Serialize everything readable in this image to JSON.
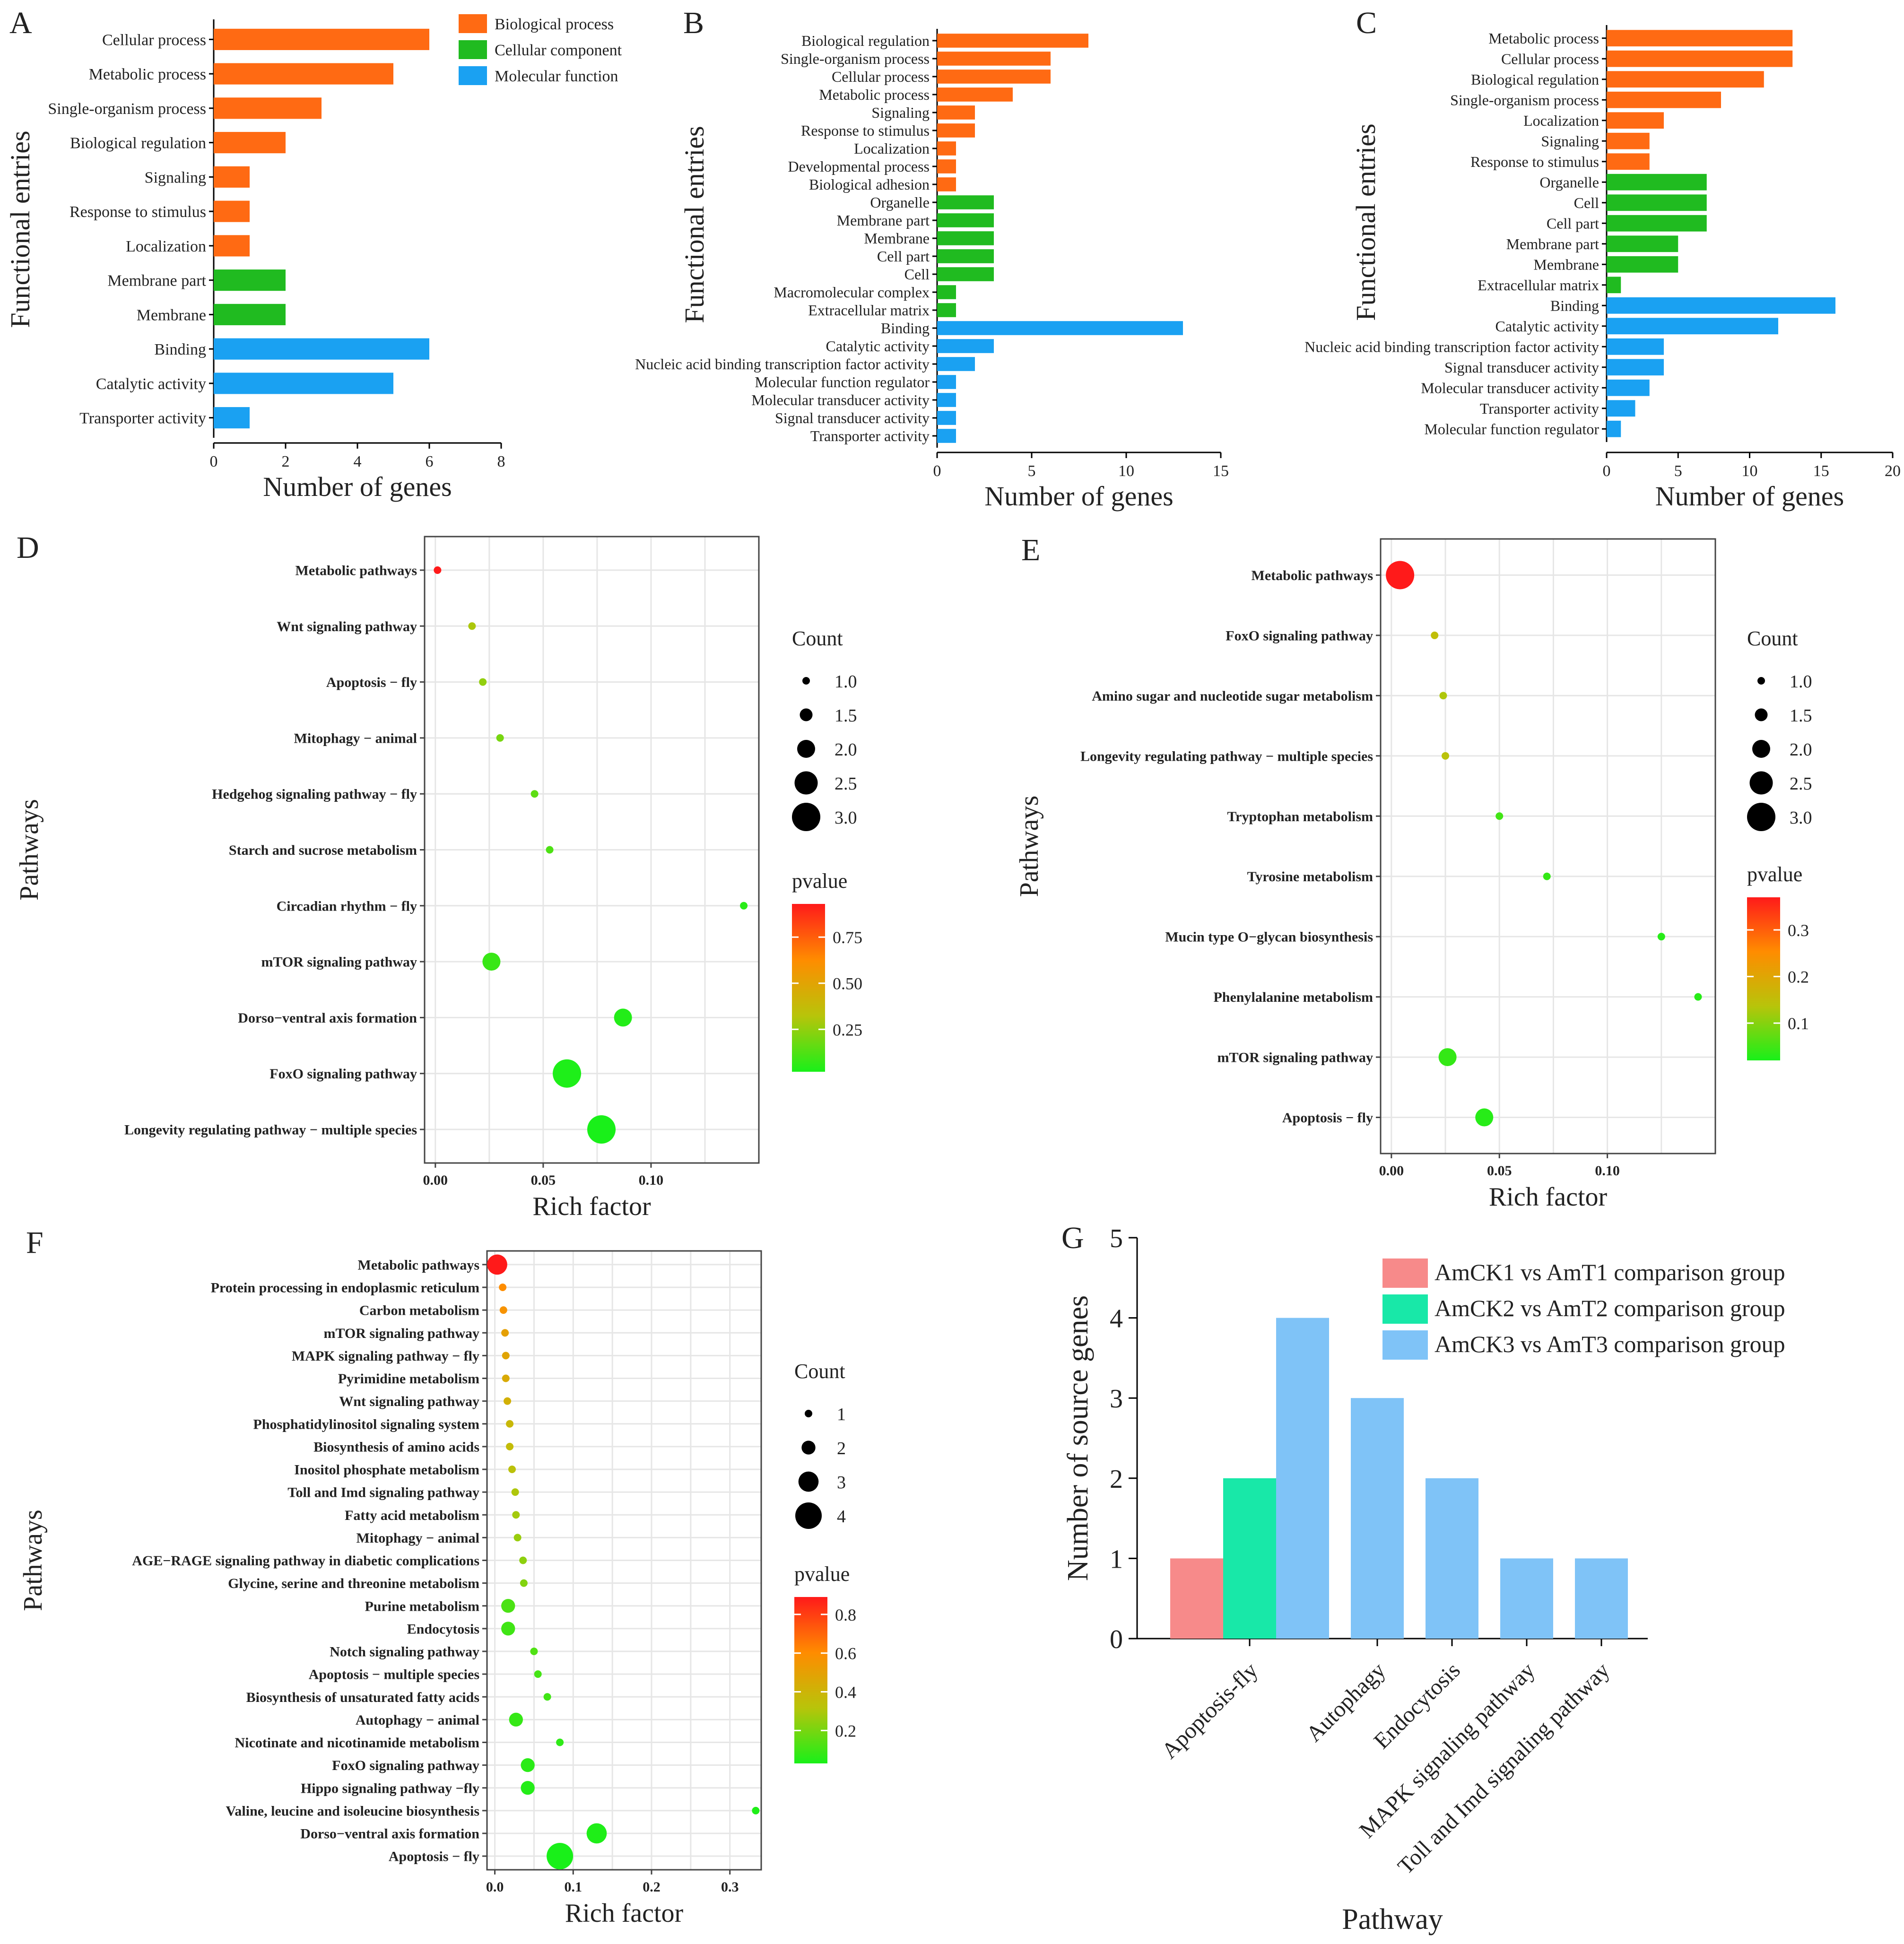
{
  "colors": {
    "biological_process": "#ff6a13",
    "cellular_component": "#20bb20",
    "molecular_function": "#1aa1f2",
    "grid": "#e6e6e6",
    "g_series": [
      "#f78a8a",
      "#18e8a8",
      "#7fc3f7"
    ],
    "pvalue_gradient": [
      "#ff1a1a",
      "#ff8c00",
      "#b8c40a",
      "#19f019"
    ]
  },
  "chart_data": [
    {
      "panel": "A",
      "type": "bar",
      "orientation": "horizontal",
      "xlabel": "Number of genes",
      "ylabel": "Functional entries",
      "xlim": [
        0,
        8
      ],
      "xticks": [
        "0",
        "2",
        "4",
        "6",
        "8"
      ],
      "legend": [
        "Biological process",
        "Cellular component",
        "Molecular function"
      ],
      "categories": [
        "Cellular process",
        "Metabolic process",
        "Single-organism process",
        "Biological regulation",
        "Signaling",
        "Response to stimulus",
        "Localization",
        "Membrane part",
        "Membrane",
        "Binding",
        "Catalytic activity",
        "Transporter activity"
      ],
      "groups": [
        "bp",
        "bp",
        "bp",
        "bp",
        "bp",
        "bp",
        "bp",
        "cc",
        "cc",
        "mf",
        "mf",
        "mf"
      ],
      "values": [
        6,
        5,
        3,
        2,
        1,
        1,
        1,
        2,
        2,
        6,
        5,
        1
      ]
    },
    {
      "panel": "B",
      "type": "bar",
      "orientation": "horizontal",
      "xlabel": "Number of genes",
      "ylabel": "Functional entries",
      "xlim": [
        0,
        15
      ],
      "xticks": [
        "0",
        "5",
        "10",
        "15"
      ],
      "categories": [
        "Biological regulation",
        "Single-organism process",
        "Cellular process",
        "Metabolic process",
        "Signaling",
        "Response to stimulus",
        "Localization",
        "Developmental process",
        "Biological adhesion",
        "Organelle",
        "Membrane part",
        "Membrane",
        "Cell part",
        "Cell",
        "Macromolecular complex",
        "Extracellular matrix",
        "Binding",
        "Catalytic activity",
        "Nucleic acid binding transcription factor activity",
        "Molecular function regulator",
        "Molecular transducer activity",
        "Signal transducer activity",
        "Transporter activity"
      ],
      "groups": [
        "bp",
        "bp",
        "bp",
        "bp",
        "bp",
        "bp",
        "bp",
        "bp",
        "bp",
        "cc",
        "cc",
        "cc",
        "cc",
        "cc",
        "cc",
        "cc",
        "mf",
        "mf",
        "mf",
        "mf",
        "mf",
        "mf",
        "mf"
      ],
      "values": [
        8,
        6,
        6,
        4,
        2,
        2,
        1,
        1,
        1,
        3,
        3,
        3,
        3,
        3,
        1,
        1,
        13,
        3,
        2,
        1,
        1,
        1,
        1
      ]
    },
    {
      "panel": "C",
      "type": "bar",
      "orientation": "horizontal",
      "xlabel": "Number of genes",
      "ylabel": "Functional entries",
      "xlim": [
        0,
        20
      ],
      "xticks": [
        "0",
        "5",
        "10",
        "15",
        "20"
      ],
      "categories": [
        "Metabolic process",
        "Cellular process",
        "Biological regulation",
        "Single-organism process",
        "Localization",
        "Signaling",
        "Response to stimulus",
        "Organelle",
        "Cell",
        "Cell part",
        "Membrane part",
        "Membrane",
        "Extracellular matrix",
        "Binding",
        "Catalytic activity",
        "Nucleic acid binding transcription factor activity",
        "Signal transducer activity",
        "Molecular transducer activity",
        "Transporter activity",
        "Molecular function regulator"
      ],
      "groups": [
        "bp",
        "bp",
        "bp",
        "bp",
        "bp",
        "bp",
        "bp",
        "cc",
        "cc",
        "cc",
        "cc",
        "cc",
        "cc",
        "mf",
        "mf",
        "mf",
        "mf",
        "mf",
        "mf",
        "mf"
      ],
      "values": [
        13,
        13,
        11,
        8,
        4,
        3,
        3,
        7,
        7,
        7,
        5,
        5,
        1,
        16,
        12,
        4,
        4,
        3,
        2,
        1
      ]
    },
    {
      "panel": "D",
      "type": "scatter",
      "xlabel": "Rich factor",
      "ylabel": "Pathways",
      "xlim": [
        -0.005,
        0.15
      ],
      "xticks": [
        0,
        0.05,
        0.1
      ],
      "xtick_labels": [
        "0.00",
        "0.05",
        "0.10"
      ],
      "count_legend_title": "Count",
      "count_legend": [
        "1.0",
        "1.5",
        "2.0",
        "2.5",
        "3.0"
      ],
      "count_levels": [
        1,
        1.5,
        2,
        2.5,
        3
      ],
      "pvalue_title": "pvalue",
      "pvalue_range": [
        0.02,
        0.93
      ],
      "pvalue_ticks": [
        "0.75",
        "0.50",
        "0.25"
      ],
      "pvalue_tick_values": [
        0.75,
        0.5,
        0.25
      ],
      "pathways": [
        "Metabolic pathways",
        "Wnt signaling pathway",
        "Apoptosis − fly",
        "Mitophagy − animal",
        "Hedgehog signaling pathway − fly",
        "Starch and sucrose metabolism",
        "Circadian rhythm − fly",
        "mTOR signaling pathway",
        "Dorso−ventral axis formation",
        "FoxO signaling pathway",
        "Longevity regulating pathway − multiple species"
      ],
      "rich_factor": [
        0.001,
        0.017,
        0.022,
        0.03,
        0.046,
        0.053,
        0.143,
        0.026,
        0.087,
        0.061,
        0.077
      ],
      "count": [
        1,
        1,
        1,
        1,
        1,
        1,
        1,
        2,
        2,
        3,
        3
      ],
      "pvalue": [
        0.93,
        0.3,
        0.25,
        0.2,
        0.15,
        0.12,
        0.05,
        0.08,
        0.04,
        0.03,
        0.02
      ]
    },
    {
      "panel": "E",
      "type": "scatter",
      "xlabel": "Rich factor",
      "ylabel": "Pathways",
      "xlim": [
        -0.005,
        0.15
      ],
      "xticks": [
        0,
        0.05,
        0.1
      ],
      "xtick_labels": [
        "0.00",
        "0.05",
        "0.10"
      ],
      "count_legend_title": "Count",
      "count_legend": [
        "1.0",
        "1.5",
        "2.0",
        "2.5",
        "3.0"
      ],
      "count_levels": [
        1,
        1.5,
        2,
        2.5,
        3
      ],
      "pvalue_title": "pvalue",
      "pvalue_range": [
        0.02,
        0.37
      ],
      "pvalue_ticks": [
        "0.3",
        "0.2",
        "0.1"
      ],
      "pvalue_tick_values": [
        0.3,
        0.2,
        0.1
      ],
      "pathways": [
        "Metabolic pathways",
        "FoxO signaling pathway",
        "Amino sugar and nucleotide sugar metabolism",
        "Longevity regulating pathway − multiple species",
        "Tryptophan metabolism",
        "Tyrosine metabolism",
        "Mucin type O−glycan biosynthesis",
        "Phenylalanine metabolism",
        "mTOR signaling pathway",
        "Apoptosis − fly"
      ],
      "rich_factor": [
        0.004,
        0.02,
        0.024,
        0.025,
        0.05,
        0.072,
        0.125,
        0.142,
        0.026,
        0.043
      ],
      "count": [
        3,
        1,
        1,
        1,
        1,
        1,
        1,
        1,
        2,
        2
      ],
      "pvalue": [
        0.37,
        0.15,
        0.13,
        0.14,
        0.05,
        0.04,
        0.03,
        0.03,
        0.04,
        0.03
      ]
    },
    {
      "panel": "F",
      "type": "scatter",
      "xlabel": "Rich factor",
      "ylabel": "Pathways",
      "xlim": [
        -0.01,
        0.34
      ],
      "xticks": [
        0,
        0.1,
        0.2,
        0.3
      ],
      "xtick_labels": [
        "0.0",
        "0.1",
        "0.2",
        "0.3"
      ],
      "count_legend_title": "Count",
      "count_legend": [
        "1",
        "2",
        "3",
        "4"
      ],
      "count_levels": [
        1,
        2,
        3,
        4
      ],
      "pvalue_title": "pvalue",
      "pvalue_range": [
        0.03,
        0.89
      ],
      "pvalue_ticks": [
        "0.8",
        "0.6",
        "0.4",
        "0.2"
      ],
      "pvalue_tick_values": [
        0.8,
        0.6,
        0.4,
        0.2
      ],
      "pathways": [
        "Metabolic pathways",
        "Protein processing in endoplasmic reticulum",
        "Carbon metabolism",
        "mTOR signaling pathway",
        "MAPK signaling pathway − fly",
        "Pyrimidine metabolism",
        "Wnt signaling pathway",
        "Phosphatidylinositol signaling system",
        "Biosynthesis of amino acids",
        "Inositol phosphate metabolism",
        "Toll and Imd signaling pathway",
        "Fatty acid metabolism",
        "Mitophagy − animal",
        "AGE−RAGE signaling pathway in diabetic complications",
        "Glycine, serine and threonine metabolism",
        "Purine metabolism",
        "Endocytosis",
        "Notch signaling pathway",
        "Apoptosis − multiple species",
        "Biosynthesis of unsaturated fatty acids",
        "Autophagy − animal",
        "Nicotinate and nicotinamide metabolism",
        "FoxO signaling pathway",
        "Hippo signaling pathway −fly",
        "Valine, leucine and isoleucine biosynthesis",
        "Dorso−ventral axis formation",
        "Apoptosis − fly"
      ],
      "rich_factor": [
        0.003,
        0.01,
        0.011,
        0.013,
        0.014,
        0.014,
        0.016,
        0.019,
        0.019,
        0.022,
        0.026,
        0.027,
        0.029,
        0.036,
        0.037,
        0.017,
        0.017,
        0.05,
        0.055,
        0.067,
        0.027,
        0.083,
        0.042,
        0.042,
        0.333,
        0.13,
        0.083
      ],
      "count": [
        3,
        1,
        1,
        1,
        1,
        1,
        1,
        1,
        1,
        1,
        1,
        1,
        1,
        1,
        1,
        2,
        2,
        1,
        1,
        1,
        2,
        1,
        2,
        2,
        1,
        3,
        4
      ],
      "pvalue": [
        0.89,
        0.6,
        0.57,
        0.5,
        0.48,
        0.45,
        0.42,
        0.38,
        0.36,
        0.33,
        0.3,
        0.28,
        0.26,
        0.24,
        0.22,
        0.12,
        0.1,
        0.13,
        0.11,
        0.1,
        0.08,
        0.07,
        0.06,
        0.05,
        0.04,
        0.04,
        0.03
      ]
    },
    {
      "panel": "G",
      "type": "bar",
      "orientation": "vertical",
      "xlabel": "Pathway",
      "ylabel": "Number of source genes",
      "ylim": [
        0,
        5
      ],
      "yticks": [
        "0",
        "1",
        "2",
        "3",
        "4",
        "5"
      ],
      "categories": [
        "Apoptosis-fly",
        "Autophagy",
        "Endocytosis",
        "MAPK signaling pathway",
        "Toll and Imd signaling pathway"
      ],
      "legend": [
        "AmCK1 vs AmT1 comparison group",
        "AmCK2 vs AmT2 comparison group",
        "AmCK3 vs AmT3 comparison group"
      ],
      "series": [
        {
          "name": "AmCK1 vs AmT1 comparison group",
          "values": [
            1,
            0,
            0,
            0,
            0
          ]
        },
        {
          "name": "AmCK2 vs AmT2 comparison group",
          "values": [
            2,
            0,
            0,
            0,
            0
          ]
        },
        {
          "name": "AmCK3 vs AmT3 comparison group",
          "values": [
            4,
            3,
            2,
            1,
            1
          ]
        }
      ]
    }
  ]
}
